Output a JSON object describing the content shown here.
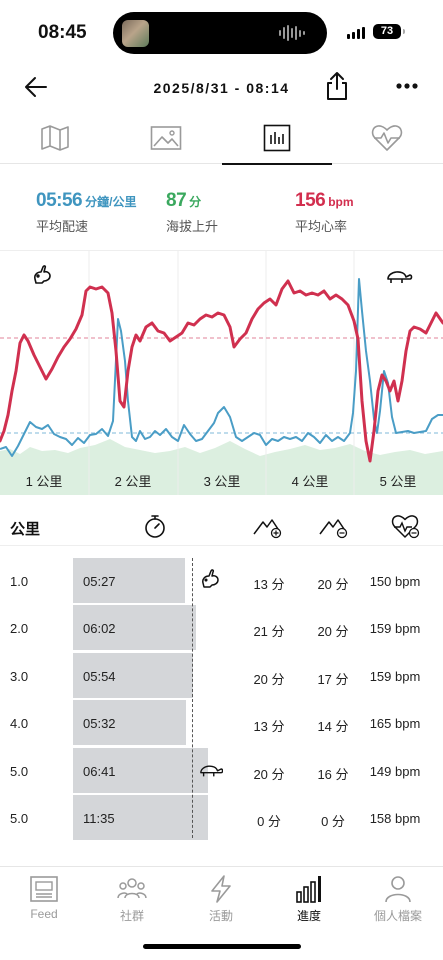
{
  "status_bar": {
    "time": "08:45",
    "battery": "73"
  },
  "header": {
    "title": "2025/8/31 - 08:14"
  },
  "tabs": [
    {
      "icon": "map-icon",
      "active": false
    },
    {
      "icon": "image-icon",
      "active": false
    },
    {
      "icon": "bar-chart-icon",
      "active": true
    },
    {
      "icon": "heart-rate-icon",
      "active": false
    }
  ],
  "stats": {
    "pace": {
      "value": "05:56",
      "unit": "分鐘/公里",
      "label": "平均配速",
      "color": "#3f95bf"
    },
    "elevation": {
      "value": "87",
      "unit": "分",
      "label": "海拔上升",
      "color": "#3aa85e"
    },
    "heart_rate": {
      "value": "156",
      "unit": "bpm",
      "label": "平均心率",
      "color": "#d22e4e"
    }
  },
  "chart": {
    "km_labels": [
      "1 公里",
      "2 公里",
      "3 公里",
      "4 公里",
      "5 公里"
    ],
    "colors": {
      "heart_rate": "#d0304f",
      "pace": "#4a9dc6",
      "elevation": "#dcefe0",
      "hr_avg_line": "#e2839a",
      "pace_avg_line": "#7fb9d8"
    }
  },
  "chart_data": {
    "type": "line",
    "x": [
      0,
      0.25,
      0.5,
      0.75,
      1.0,
      1.25,
      1.5,
      1.75,
      2.0,
      2.25,
      2.5,
      2.75,
      3.0,
      3.25,
      3.5,
      3.75,
      4.0,
      4.25,
      4.5,
      4.75,
      5.0
    ],
    "x_tick_labels": [
      "1 公里",
      "2 公里",
      "3 公里",
      "4 公里",
      "5 公里"
    ],
    "series": [
      {
        "name": "heart_rate",
        "values": [
          125,
          146,
          140,
          151,
          160,
          166,
          132,
          152,
          154,
          151,
          161,
          152,
          153,
          166,
          164,
          166,
          165,
          155,
          131,
          153,
          157
        ]
      },
      {
        "name": "pace",
        "values": [
          7.2,
          6.5,
          6.7,
          6.8,
          6.3,
          6.8,
          6.6,
          6.4,
          6.8,
          6.7,
          6.3,
          6.6,
          6.6,
          6.4,
          6.5,
          6.7,
          6.5,
          6.4,
          6.5,
          6.6,
          6.3
        ]
      },
      {
        "name": "elevation",
        "values": [
          2,
          6,
          4,
          7,
          5,
          8,
          3,
          7,
          5,
          6,
          8,
          5,
          6,
          4,
          5,
          7,
          6,
          5,
          4,
          6,
          5
        ]
      }
    ],
    "hr_average": 156,
    "pace_average": "05:56",
    "markers": [
      {
        "type": "rabbit",
        "km": 1
      },
      {
        "type": "turtle",
        "km": 5
      }
    ]
  },
  "table": {
    "header_first": "公里",
    "header_icons": [
      "stopwatch-icon",
      "elevation-gain-icon",
      "elevation-loss-icon",
      "heart-rate-icon"
    ],
    "rows": [
      {
        "km": "1.0",
        "pace": "05:27",
        "bar": 0.83,
        "gain": "13 分",
        "loss": "20 分",
        "hr": "150 bpm",
        "marker": "rabbit"
      },
      {
        "km": "2.0",
        "pace": "06:02",
        "bar": 0.91,
        "gain": "21 分",
        "loss": "20 分",
        "hr": "159 bpm",
        "marker": ""
      },
      {
        "km": "3.0",
        "pace": "05:54",
        "bar": 0.89,
        "gain": "20 分",
        "loss": "17 分",
        "hr": "159 bpm",
        "marker": ""
      },
      {
        "km": "4.0",
        "pace": "05:32",
        "bar": 0.84,
        "gain": "13 分",
        "loss": "14 分",
        "hr": "165 bpm",
        "marker": ""
      },
      {
        "km": "5.0",
        "pace": "06:41",
        "bar": 1.0,
        "gain": "20 分",
        "loss": "16 分",
        "hr": "149 bpm",
        "marker": "turtle"
      },
      {
        "km": "5.0",
        "pace": "11:35",
        "bar": 1.0,
        "gain": "0 分",
        "loss": "0 分",
        "hr": "158 bpm",
        "marker": ""
      }
    ]
  },
  "bottom_nav": [
    {
      "label": "Feed",
      "icon": "feed-icon",
      "active": false
    },
    {
      "label": "社群",
      "icon": "community-icon",
      "active": false
    },
    {
      "label": "活動",
      "icon": "lightning-icon",
      "active": false
    },
    {
      "label": "進度",
      "icon": "progress-bars-icon",
      "active": true
    },
    {
      "label": "個人檔案",
      "icon": "profile-icon",
      "active": false
    }
  ]
}
